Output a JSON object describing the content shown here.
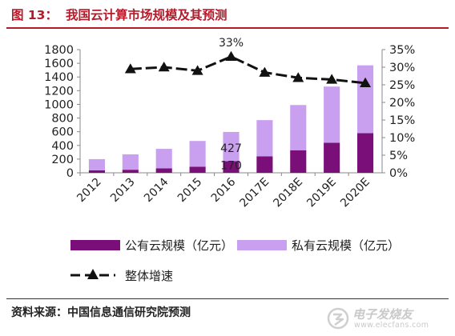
{
  "figure": {
    "label": "图 13：",
    "title": "我国云计算市场规模及其预测",
    "source": "资料来源：中国信息通信研究院预测"
  },
  "watermark": {
    "text": "电子发烧友",
    "url": "www.elecfans.com"
  },
  "colors": {
    "title_red": "#b51a2a",
    "public_cloud": "#7a0f7a",
    "private_cloud": "#c9a0f0",
    "growth_line": "#111111"
  },
  "chart_data": {
    "type": "bar",
    "stacked": true,
    "categories": [
      "2012",
      "2013",
      "2014",
      "2015",
      "2016",
      "2017E",
      "2018E",
      "2019E",
      "2020E"
    ],
    "series": [
      {
        "name": "公有云规模（亿元）",
        "axis": "left",
        "values": [
          35,
          45,
          65,
          90,
          170,
          240,
          330,
          440,
          580
        ]
      },
      {
        "name": "私有云规模（亿元）",
        "axis": "left",
        "values": [
          165,
          225,
          285,
          375,
          427,
          530,
          660,
          820,
          990
        ]
      },
      {
        "name": "整体增速",
        "type": "line",
        "axis": "right",
        "unit": "%",
        "x": [
          "2013",
          "2014",
          "2015",
          "2016",
          "2017E",
          "2018E",
          "2019E",
          "2020E"
        ],
        "values": [
          29.5,
          30,
          29,
          33,
          28.5,
          27,
          26.5,
          25.5
        ]
      }
    ],
    "data_labels": [
      {
        "category": "2016",
        "series": "私有云规模（亿元）",
        "text": "427"
      },
      {
        "category": "2016",
        "series": "公有云规模（亿元）",
        "text": "170"
      },
      {
        "category": "2016",
        "series": "整体增速",
        "text": "33%"
      }
    ],
    "ylim_left": [
      0,
      1800
    ],
    "yticks_left": [
      "0",
      "200",
      "400",
      "600",
      "800",
      "1000",
      "1200",
      "1400",
      "1600",
      "1800"
    ],
    "ylim_right": [
      0,
      35
    ],
    "yticks_right": [
      "0%",
      "5%",
      "10%",
      "15%",
      "20%",
      "25%",
      "30%",
      "35%"
    ],
    "legend": [
      {
        "name": "公有云规模（亿元）",
        "marker": "bar-dark"
      },
      {
        "name": "私有云规模（亿元）",
        "marker": "bar-light"
      },
      {
        "name": "整体增速",
        "marker": "dashed-triangle"
      }
    ],
    "legend_placement": "bottom",
    "grid": false
  }
}
